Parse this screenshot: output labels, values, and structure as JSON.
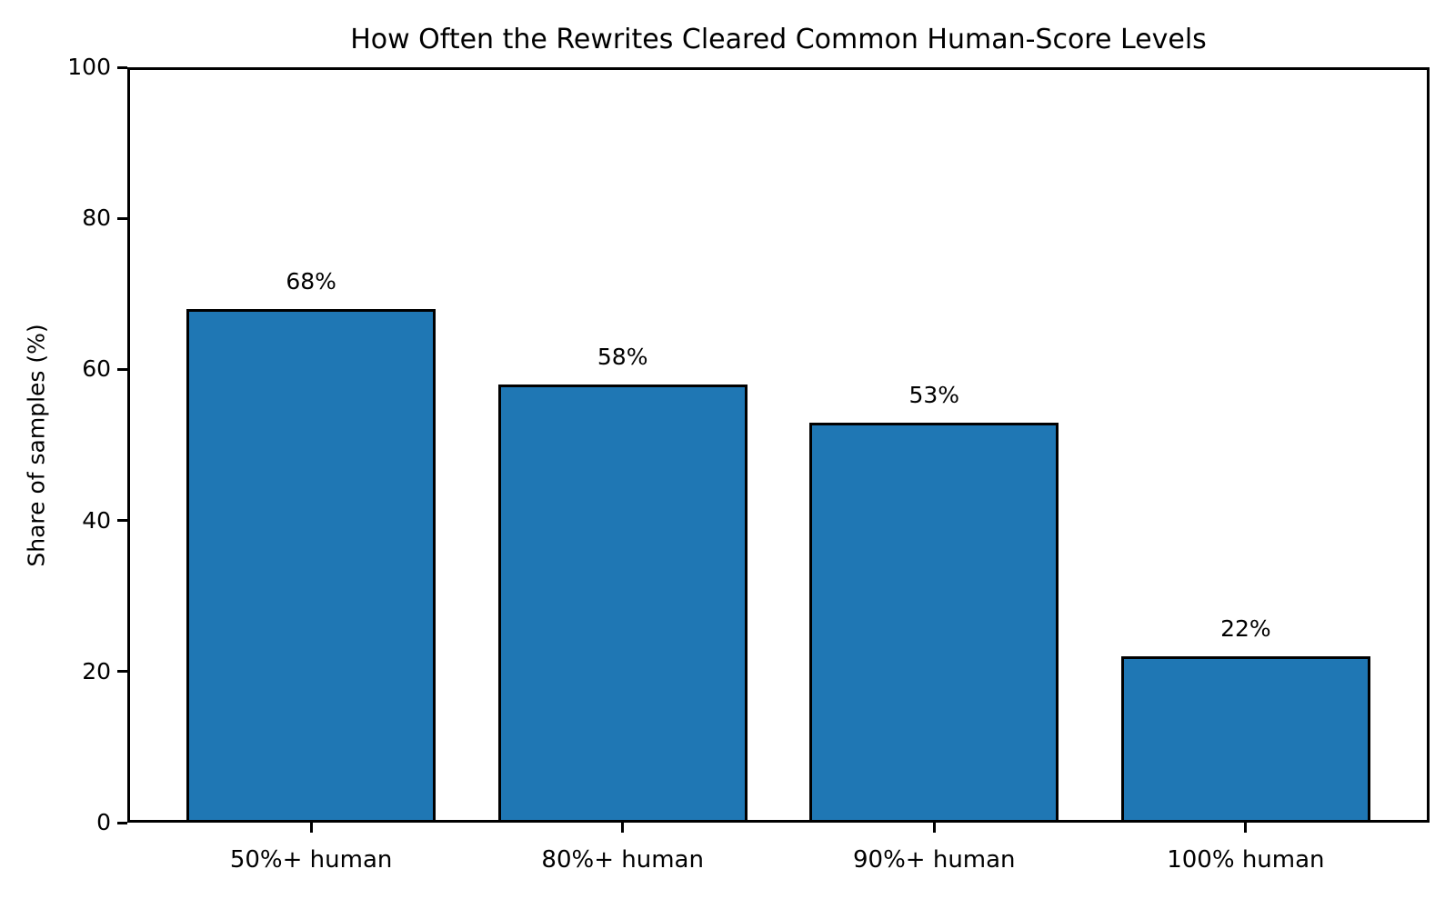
{
  "figure": {
    "background": "#ffffff"
  },
  "chart_data": {
    "type": "bar",
    "title": "How Often the Rewrites Cleared Common Human-Score Levels",
    "xlabel": "",
    "ylabel": "Share of samples (%)",
    "categories": [
      "50%+ human",
      "80%+ human",
      "90%+ human",
      "100% human"
    ],
    "values": [
      68,
      58,
      53,
      22
    ],
    "bar_labels": [
      "68%",
      "58%",
      "53%",
      "22%"
    ],
    "yticks": [
      0,
      20,
      40,
      60,
      80,
      100
    ],
    "ylim": [
      0,
      100
    ],
    "grid": false,
    "legend": null,
    "bar_width_fraction": 0.8,
    "colors": {
      "bar_fill": "#1f77b4",
      "bar_edge": "#000000",
      "axes": "#000000",
      "text": "#000000",
      "background": "#ffffff"
    }
  }
}
